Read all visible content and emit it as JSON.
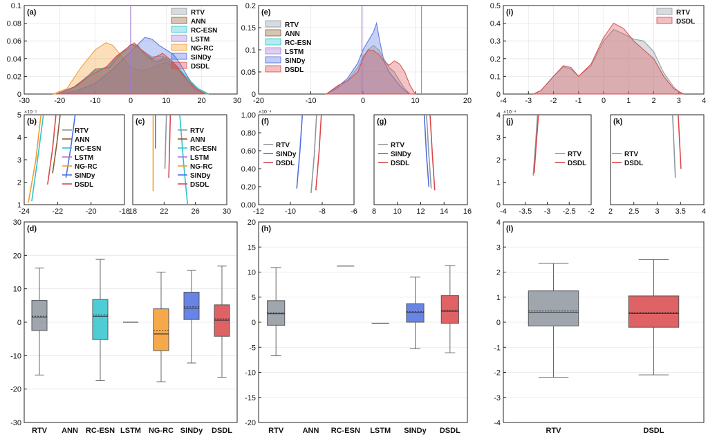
{
  "colors": {
    "RTV": "#8e979f",
    "ANN": "#8a5a2b",
    "RC-ESN": "#2fc4cf",
    "LSTM": "#a47ad8",
    "NG-RC": "#f39a2a",
    "SINDy": "#4d6fe0",
    "DSDL": "#d9474a"
  },
  "chart_data": [
    {
      "panel": "a",
      "type": "area",
      "label": "(a)",
      "xlim": [
        -30,
        30
      ],
      "ylim": [
        0,
        0.1
      ],
      "xticks": [
        "-30",
        "-20",
        "-10",
        "0",
        "10",
        "20",
        "30"
      ],
      "yticks": [
        "0",
        "0.02",
        "0.04",
        "0.06",
        "0.08",
        "0.1"
      ],
      "vlines": [
        {
          "x": 0,
          "series": "LSTM"
        }
      ],
      "legend": [
        "RTV",
        "ANN",
        "RC-ESN",
        "LSTM",
        "NG-RC",
        "SINDy",
        "DSDL"
      ],
      "series": [
        {
          "name": "NG-RC",
          "x": [
            -22,
            -18,
            -14,
            -10,
            -7,
            -5,
            -3,
            0,
            3,
            6,
            10,
            14,
            18,
            22
          ],
          "y": [
            0,
            0.006,
            0.03,
            0.05,
            0.058,
            0.055,
            0.045,
            0.03,
            0.026,
            0.03,
            0.036,
            0.025,
            0.008,
            0
          ]
        },
        {
          "name": "SINDy",
          "x": [
            -20,
            -15,
            -10,
            -5,
            -2,
            0,
            2,
            4,
            6,
            8,
            10,
            12,
            14,
            16,
            18,
            21
          ],
          "y": [
            0,
            0.004,
            0.012,
            0.028,
            0.04,
            0.048,
            0.056,
            0.064,
            0.062,
            0.055,
            0.05,
            0.045,
            0.034,
            0.02,
            0.008,
            0
          ]
        },
        {
          "name": "ANN",
          "x": [
            -20,
            -15,
            -10,
            -6,
            -3,
            0,
            2,
            4,
            7,
            10,
            13,
            16,
            19,
            22
          ],
          "y": [
            0,
            0.01,
            0.028,
            0.03,
            0.044,
            0.056,
            0.055,
            0.044,
            0.036,
            0.04,
            0.03,
            0.018,
            0.006,
            0
          ]
        },
        {
          "name": "RC-ESN",
          "x": [
            -20,
            -15,
            -10,
            -6,
            -3,
            0,
            2,
            4,
            7,
            10,
            13,
            16,
            19,
            22
          ],
          "y": [
            0,
            0.009,
            0.026,
            0.032,
            0.046,
            0.055,
            0.054,
            0.046,
            0.038,
            0.042,
            0.032,
            0.018,
            0.006,
            0
          ]
        },
        {
          "name": "RTV",
          "x": [
            -21,
            -16,
            -11,
            -7,
            -4,
            -1,
            1,
            3,
            6,
            9,
            12,
            15,
            18,
            21
          ],
          "y": [
            0,
            0.008,
            0.024,
            0.03,
            0.042,
            0.05,
            0.054,
            0.05,
            0.042,
            0.043,
            0.034,
            0.02,
            0.007,
            0
          ]
        },
        {
          "name": "DSDL",
          "x": [
            -21,
            -16,
            -11,
            -7,
            -4,
            -1,
            1,
            3,
            6,
            9,
            12,
            15,
            18,
            21
          ],
          "y": [
            0,
            0.008,
            0.022,
            0.03,
            0.043,
            0.052,
            0.058,
            0.05,
            0.04,
            0.046,
            0.036,
            0.02,
            0.006,
            0
          ]
        }
      ]
    },
    {
      "panel": "e",
      "type": "area",
      "label": "(e)",
      "xlim": [
        -20,
        20
      ],
      "ylim": [
        0,
        0.2
      ],
      "xticks": [
        "-20",
        "-10",
        "0",
        "10",
        "20"
      ],
      "yticks": [
        "0",
        "0.05",
        "0.1",
        "0.15",
        "0.2"
      ],
      "vlines": [
        {
          "x": -0.2,
          "series": "LSTM"
        },
        {
          "x": 11.2,
          "series": "RC-ESN"
        }
      ],
      "legend": [
        "RTV",
        "ANN",
        "RC-ESN",
        "LSTM",
        "SINDy",
        "DSDL"
      ],
      "series": [
        {
          "name": "SINDy",
          "x": [
            -7,
            -5,
            -3,
            -1,
            0,
            1,
            2,
            2.6,
            3.2,
            4,
            5,
            6,
            7,
            8,
            9
          ],
          "y": [
            0,
            0.015,
            0.035,
            0.07,
            0.1,
            0.12,
            0.14,
            0.16,
            0.12,
            0.075,
            0.05,
            0.035,
            0.02,
            0.008,
            0
          ]
        },
        {
          "name": "RTV",
          "x": [
            -7,
            -5,
            -3,
            -1,
            0,
            1,
            2,
            3,
            4,
            5,
            6,
            7,
            8,
            9
          ],
          "y": [
            0,
            0.012,
            0.03,
            0.06,
            0.085,
            0.1,
            0.11,
            0.1,
            0.08,
            0.06,
            0.05,
            0.03,
            0.012,
            0
          ]
        },
        {
          "name": "DSDL",
          "x": [
            -7,
            -5,
            -3,
            -1,
            0,
            1,
            2,
            3,
            4,
            5,
            6,
            7,
            8,
            9,
            10
          ],
          "y": [
            0,
            0.018,
            0.03,
            0.05,
            0.08,
            0.1,
            0.098,
            0.09,
            0.075,
            0.065,
            0.075,
            0.068,
            0.05,
            0.02,
            0
          ]
        }
      ]
    },
    {
      "panel": "i",
      "type": "area",
      "label": "(i)",
      "xlim": [
        -4,
        4
      ],
      "ylim": [
        0,
        0.5
      ],
      "xticks": [
        "-4",
        "-3",
        "-2",
        "-1",
        "0",
        "1",
        "2",
        "3",
        "4"
      ],
      "yticks": [
        "0",
        "0.1",
        "0.2",
        "0.3",
        "0.4",
        "0.5"
      ],
      "legend": [
        "RTV",
        "DSDL"
      ],
      "series": [
        {
          "name": "RTV",
          "x": [
            -2.8,
            -2.5,
            -2,
            -1.6,
            -1.3,
            -1,
            -0.5,
            0,
            0.4,
            0.8,
            1.2,
            1.6,
            2,
            2.4,
            2.8,
            3.1
          ],
          "y": [
            0,
            0.02,
            0.1,
            0.155,
            0.14,
            0.1,
            0.16,
            0.3,
            0.365,
            0.34,
            0.31,
            0.3,
            0.24,
            0.12,
            0.04,
            0
          ]
        },
        {
          "name": "DSDL",
          "x": [
            -2.8,
            -2.5,
            -2,
            -1.6,
            -1.3,
            -1,
            -0.5,
            0,
            0.4,
            0.8,
            1.2,
            1.6,
            2,
            2.4,
            2.8,
            3.2
          ],
          "y": [
            0,
            0.02,
            0.1,
            0.16,
            0.15,
            0.1,
            0.17,
            0.32,
            0.4,
            0.37,
            0.3,
            0.25,
            0.2,
            0.1,
            0.03,
            0
          ]
        }
      ]
    },
    {
      "panel": "b",
      "type": "line",
      "label": "(b)",
      "exponent": "×10⁻⁵",
      "xlim": [
        -24,
        -18
      ],
      "ylim": [
        1,
        5
      ],
      "xticks": [
        "-24",
        "-22",
        "-20",
        "-18"
      ],
      "yticks": [
        "1",
        "2",
        "3",
        "4",
        "5"
      ],
      "legend": [
        "RTV",
        "ANN",
        "RC-ESN",
        "LSTM",
        "NG-RC",
        "SINDy",
        "DSDL"
      ],
      "series": [
        {
          "name": "NG-RC",
          "x": [
            -23.75,
            -23.3,
            -23
          ],
          "y": [
            1.1,
            3,
            5
          ]
        },
        {
          "name": "RC-ESN",
          "x": [
            -23.55,
            -23.2,
            -22.85
          ],
          "y": [
            1.15,
            3,
            5
          ]
        },
        {
          "name": "DSDL",
          "x": [
            -22.6,
            -22.3,
            -22.1
          ],
          "y": [
            1.9,
            3.5,
            5
          ]
        },
        {
          "name": "ANN",
          "x": [
            -22.3,
            -22.05,
            -21.85
          ],
          "y": [
            2.4,
            3.7,
            5
          ]
        },
        {
          "name": "SINDy",
          "x": [
            -21.5,
            -21.2,
            -20.95
          ],
          "y": [
            2.2,
            3.6,
            5
          ]
        }
      ]
    },
    {
      "panel": "c",
      "type": "line",
      "label": "(c)",
      "xlim": [
        18,
        30
      ],
      "ylim": [
        1,
        5
      ],
      "xticks": [
        "18",
        "22",
        "26",
        "30"
      ],
      "yticks": [],
      "legend": [
        "RTV",
        "ANN",
        "RC-ESN",
        "LSTM",
        "NG-RC",
        "SINDy",
        "DSDL"
      ],
      "series": [
        {
          "name": "NG-RC",
          "x": [
            20.6,
            20.6
          ],
          "y": [
            1.6,
            5
          ]
        },
        {
          "name": "SINDy",
          "x": [
            20.9,
            20.9
          ],
          "y": [
            3.5,
            5
          ]
        },
        {
          "name": "RTV",
          "x": [
            22.1,
            22.3
          ],
          "y": [
            2.6,
            5
          ]
        },
        {
          "name": "DSDL",
          "x": [
            22.6,
            22.8
          ],
          "y": [
            2.2,
            5
          ]
        },
        {
          "name": "RC-ESN",
          "x": [
            24,
            24.5,
            25
          ],
          "y": [
            5,
            2.8,
            1
          ]
        }
      ]
    },
    {
      "panel": "f",
      "type": "line",
      "label": "(f)",
      "exponent": "×10⁻⁴",
      "xlim": [
        -12,
        -6
      ],
      "ylim": [
        0,
        1
      ],
      "xticks": [
        "-12",
        "-10",
        "-8",
        "-6"
      ],
      "yticks": [
        "0.00",
        "0.20",
        "0.40",
        "0.60",
        "0.80",
        "1.00"
      ],
      "legend": [
        "RTV",
        "SINDy",
        "DSDL"
      ],
      "series": [
        {
          "name": "SINDy",
          "x": [
            -9.6,
            -9.4,
            -9.25
          ],
          "y": [
            0.18,
            0.6,
            1
          ]
        },
        {
          "name": "RTV",
          "x": [
            -8.7,
            -8.5,
            -8.35
          ],
          "y": [
            0.13,
            0.55,
            1
          ]
        },
        {
          "name": "DSDL",
          "x": [
            -8.4,
            -8.2,
            -8.05
          ],
          "y": [
            0.16,
            0.58,
            1
          ]
        }
      ]
    },
    {
      "panel": "g",
      "type": "line",
      "label": "(g)",
      "xlim": [
        8,
        16
      ],
      "ylim": [
        0,
        1
      ],
      "xticks": [
        "8",
        "10",
        "12",
        "14",
        "16"
      ],
      "yticks": [],
      "legend": [
        "RTV",
        "SINDy",
        "DSDL"
      ],
      "series": [
        {
          "name": "SINDy",
          "x": [
            12.3,
            12.5,
            12.7
          ],
          "y": [
            1,
            0.55,
            0.2
          ]
        },
        {
          "name": "RTV",
          "x": [
            12.5,
            12.7,
            12.9
          ],
          "y": [
            1,
            0.55,
            0.18
          ]
        },
        {
          "name": "DSDL",
          "x": [
            12.8,
            13.0,
            13.2
          ],
          "y": [
            1,
            0.55,
            0.16
          ]
        }
      ]
    },
    {
      "panel": "j",
      "type": "line",
      "label": "(j)",
      "exponent": "×10⁻⁴",
      "xlim": [
        -4,
        -2
      ],
      "ylim": [
        0,
        4
      ],
      "xticks": [
        "-4",
        "-3.5",
        "-3",
        "-2.5",
        "-2"
      ],
      "yticks": [
        "0",
        "1",
        "2",
        "3",
        "4"
      ],
      "legend": [
        "RTV",
        "DSDL"
      ],
      "series": [
        {
          "name": "RTV",
          "x": [
            -3.32,
            -3.27,
            -3.22
          ],
          "y": [
            1.3,
            2.6,
            4
          ]
        },
        {
          "name": "DSDL",
          "x": [
            -3.3,
            -3.25,
            -3.2
          ],
          "y": [
            1.4,
            2.7,
            4
          ]
        }
      ]
    },
    {
      "panel": "k",
      "type": "line",
      "label": "(k)",
      "xlim": [
        2,
        4
      ],
      "ylim": [
        0,
        4
      ],
      "xticks": [
        "2",
        "2.5",
        "3",
        "3.5",
        "4"
      ],
      "yticks": [],
      "legend": [
        "RTV",
        "DSDL"
      ],
      "series": [
        {
          "name": "RTV",
          "x": [
            3.33,
            3.36,
            3.39
          ],
          "y": [
            4,
            2.6,
            1.2
          ]
        },
        {
          "name": "DSDL",
          "x": [
            3.45,
            3.48,
            3.51
          ],
          "y": [
            4,
            2.8,
            1.6
          ]
        }
      ]
    },
    {
      "panel": "d",
      "type": "box",
      "label": "(d)",
      "ylim": [
        -30,
        30
      ],
      "yticks": [
        "-30",
        "-20",
        "-10",
        "0",
        "10",
        "20",
        "30"
      ],
      "categories": [
        "RTV",
        "ANN",
        "RC-ESN",
        "LSTM",
        "NG-RC",
        "SINDy",
        "DSDL"
      ],
      "boxes": [
        {
          "name": "RTV",
          "min": -15.8,
          "q1": -2.5,
          "median": 1.5,
          "mean": 1.8,
          "q3": 6.5,
          "max": 16.2
        },
        {
          "name": "ANN",
          "empty": true
        },
        {
          "name": "RC-ESN",
          "min": -17.5,
          "q1": -5.2,
          "median": 1.8,
          "mean": 2.2,
          "q3": 6.8,
          "max": 18.8
        },
        {
          "name": "LSTM",
          "flat": 0
        },
        {
          "name": "NG-RC",
          "min": -17.8,
          "q1": -8.5,
          "median": -3.5,
          "mean": -2.5,
          "q3": 4,
          "max": 15
        },
        {
          "name": "SINDy",
          "min": -12.2,
          "q1": 0.8,
          "median": 4.2,
          "mean": 4.6,
          "q3": 9,
          "max": 15.5
        },
        {
          "name": "DSDL",
          "min": -16.5,
          "q1": -4.2,
          "median": 0.6,
          "mean": 1.0,
          "q3": 5.2,
          "max": 16.8
        }
      ]
    },
    {
      "panel": "h",
      "type": "box",
      "label": "(h)",
      "ylim": [
        -20,
        20
      ],
      "yticks": [
        "-20",
        "-15",
        "-10",
        "-5",
        "0",
        "5",
        "10",
        "15",
        "20"
      ],
      "categories": [
        "RTV",
        "ANN",
        "RC-ESN",
        "LSTM",
        "SINDy",
        "DSDL"
      ],
      "boxes": [
        {
          "name": "RTV",
          "min": -6.7,
          "q1": -0.6,
          "median": 1.7,
          "mean": 1.9,
          "q3": 4.3,
          "max": 10.9
        },
        {
          "name": "ANN",
          "empty": true
        },
        {
          "name": "RC-ESN",
          "flat": 11.2
        },
        {
          "name": "LSTM",
          "flat": -0.2
        },
        {
          "name": "SINDy",
          "min": -5.3,
          "q1": 0,
          "median": 2,
          "mean": 2.1,
          "q3": 3.7,
          "max": 9
        },
        {
          "name": "DSDL",
          "min": -6.1,
          "q1": -0.2,
          "median": 2.2,
          "mean": 2.4,
          "q3": 5.3,
          "max": 11.3
        }
      ]
    },
    {
      "panel": "l",
      "type": "box",
      "label": "(l)",
      "ylim": [
        -4,
        4
      ],
      "yticks": [
        "-4",
        "-3",
        "-2",
        "-1",
        "0",
        "1",
        "2",
        "3",
        "4"
      ],
      "categories": [
        "RTV",
        "DSDL"
      ],
      "boxes": [
        {
          "name": "RTV",
          "min": -2.2,
          "q1": -0.15,
          "median": 0.4,
          "mean": 0.45,
          "q3": 1.25,
          "max": 2.35
        },
        {
          "name": "DSDL",
          "min": -2.1,
          "q1": -0.2,
          "median": 0.35,
          "mean": 0.4,
          "q3": 1.05,
          "max": 2.5
        }
      ]
    }
  ]
}
